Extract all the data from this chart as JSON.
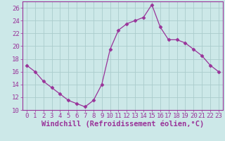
{
  "x": [
    0,
    1,
    2,
    3,
    4,
    5,
    6,
    7,
    8,
    9,
    10,
    11,
    12,
    13,
    14,
    15,
    16,
    17,
    18,
    19,
    20,
    21,
    22,
    23
  ],
  "y": [
    17,
    16,
    14.5,
    13.5,
    12.5,
    11.5,
    11,
    10.5,
    11.5,
    14,
    19.5,
    22.5,
    23.5,
    24,
    24.5,
    26.5,
    23,
    21,
    21,
    20.5,
    19.5,
    18.5,
    17,
    16
  ],
  "line_color": "#993399",
  "marker": "D",
  "marker_size": 2.5,
  "bg_color": "#cce8e8",
  "grid_color": "#aacccc",
  "xlabel": "Windchill (Refroidissement éolien,°C)",
  "xlim": [
    -0.5,
    23.5
  ],
  "ylim": [
    10,
    27
  ],
  "yticks": [
    10,
    12,
    14,
    16,
    18,
    20,
    22,
    24,
    26
  ],
  "xticks": [
    0,
    1,
    2,
    3,
    4,
    5,
    6,
    7,
    8,
    9,
    10,
    11,
    12,
    13,
    14,
    15,
    16,
    17,
    18,
    19,
    20,
    21,
    22,
    23
  ],
  "axis_color": "#993399",
  "font_size": 6.5,
  "xlabel_fontsize": 7.5
}
